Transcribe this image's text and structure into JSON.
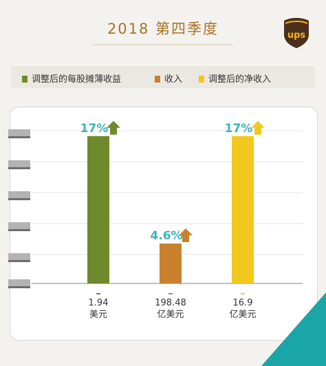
{
  "header": {
    "title": "2018 第四季度",
    "logo_text": "ups"
  },
  "legend": [
    {
      "label": "调整后的每股摊薄收益",
      "color": "#6f8a2c"
    },
    {
      "label": "收入",
      "color": "#c9812e"
    },
    {
      "label": "调整后的净收入",
      "color": "#f0c81e"
    }
  ],
  "chart_data": {
    "type": "bar",
    "categories": [
      "1.94\n美元",
      "198.48\n亿美元",
      "16.9\n亿美元"
    ],
    "series": [
      {
        "name": "",
        "values": [
          17,
          4.6,
          17
        ]
      }
    ],
    "labels": [
      "17%",
      "4.6%",
      "17%"
    ],
    "xlabels": [
      [
        "1.94",
        "美元"
      ],
      [
        "198.48",
        "亿美元"
      ],
      [
        "16.9",
        "亿美元"
      ]
    ],
    "colors": [
      "#6f8a2c",
      "#c9812e",
      "#f0c81e"
    ],
    "arrow_colors": [
      "#6f8a2c",
      "#c9812e",
      "#f0c81e"
    ],
    "unit": "%",
    "ylim": [
      0,
      20
    ],
    "grid": true
  }
}
